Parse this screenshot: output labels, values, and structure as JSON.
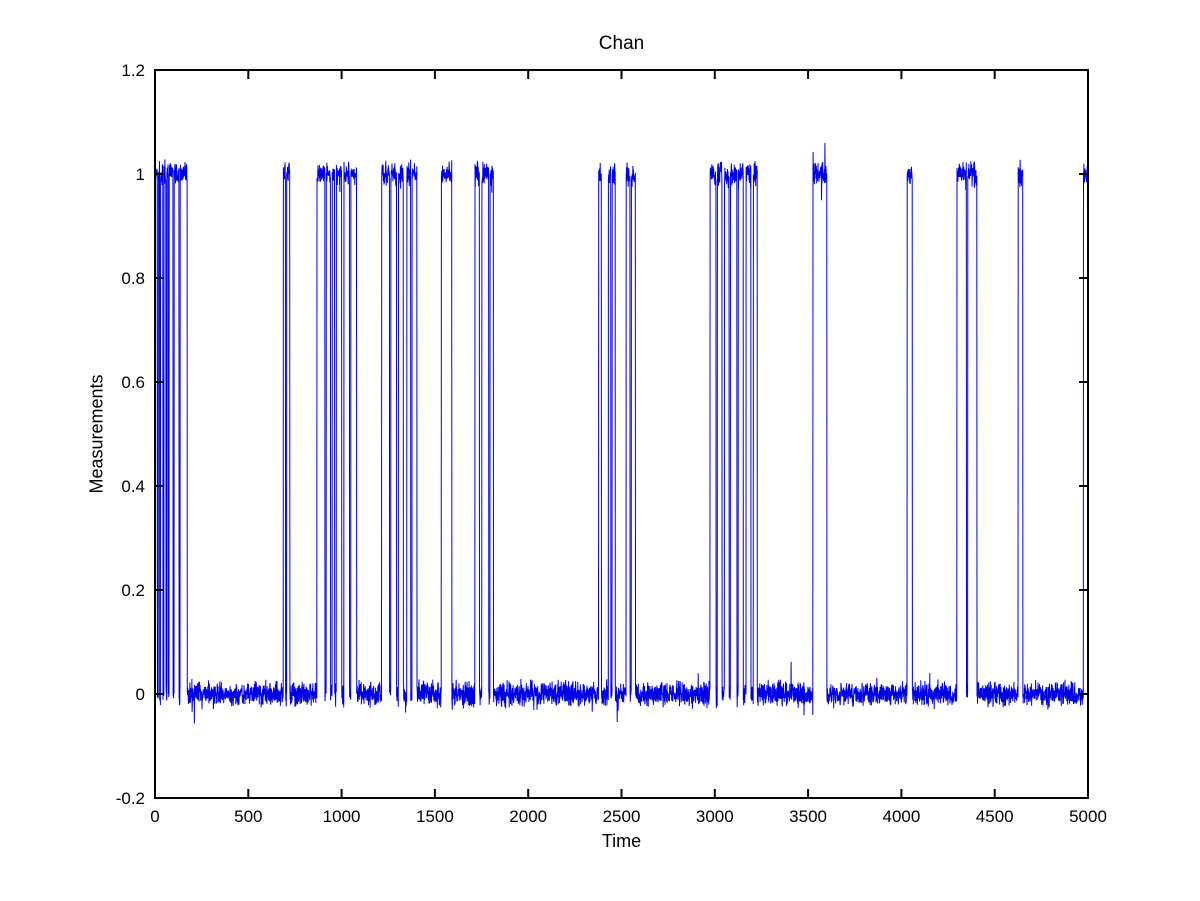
{
  "figure": {
    "background": "#ffffff"
  },
  "chart_data": {
    "type": "line",
    "title": "Chan",
    "xlabel": "Time",
    "ylabel": "Measurements",
    "xlim": [
      0,
      5000
    ],
    "ylim": [
      -0.2,
      1.2
    ],
    "xticks": [
      0,
      500,
      1000,
      1500,
      2000,
      2500,
      3000,
      3500,
      4000,
      4500,
      5000
    ],
    "xtick_labels": [
      "0",
      "500",
      "1000",
      "1500",
      "2000",
      "2500",
      "3000",
      "3500",
      "4000",
      "4500",
      "5000"
    ],
    "yticks": [
      -0.2,
      0,
      0.2,
      0.4,
      0.6,
      0.8,
      1,
      1.2
    ],
    "ytick_labels": [
      "-0.2",
      "0",
      "0.2",
      "0.4",
      "0.6",
      "0.8",
      "1",
      "1.2"
    ],
    "grid": false,
    "legend": null,
    "line_color": "#0000e6",
    "axis_color": "#000000",
    "series": [
      {
        "name": "Measurements",
        "description": "Noisy random-telegraph (binary) signal switching between 0 and 1",
        "levels": {
          "low": 0,
          "high": 1
        },
        "noise_std": 0.011,
        "n_points": 5001,
        "high_intervals": [
          [
            2,
            12
          ],
          [
            18,
            24
          ],
          [
            30,
            42
          ],
          [
            48,
            58
          ],
          [
            64,
            70
          ],
          [
            76,
            96
          ],
          [
            103,
            128
          ],
          [
            135,
            172
          ],
          [
            688,
            699
          ],
          [
            706,
            722
          ],
          [
            868,
            910
          ],
          [
            918,
            940
          ],
          [
            950,
            962
          ],
          [
            972,
            1000
          ],
          [
            1013,
            1042
          ],
          [
            1050,
            1080
          ],
          [
            1215,
            1256
          ],
          [
            1264,
            1294
          ],
          [
            1305,
            1330
          ],
          [
            1350,
            1370
          ],
          [
            1378,
            1403
          ],
          [
            1535,
            1590
          ],
          [
            1715,
            1738
          ],
          [
            1752,
            1788
          ],
          [
            1796,
            1813
          ],
          [
            2378,
            2392
          ],
          [
            2430,
            2442
          ],
          [
            2450,
            2466
          ],
          [
            2525,
            2545
          ],
          [
            2553,
            2574
          ],
          [
            2975,
            3006
          ],
          [
            3014,
            3038
          ],
          [
            3052,
            3076
          ],
          [
            3084,
            3118
          ],
          [
            3126,
            3152
          ],
          [
            3168,
            3193
          ],
          [
            3207,
            3227
          ],
          [
            3526,
            3600
          ],
          [
            4031,
            4058
          ],
          [
            4298,
            4348
          ],
          [
            4356,
            4404
          ],
          [
            4626,
            4650
          ],
          [
            4976,
            5000
          ]
        ]
      }
    ]
  }
}
